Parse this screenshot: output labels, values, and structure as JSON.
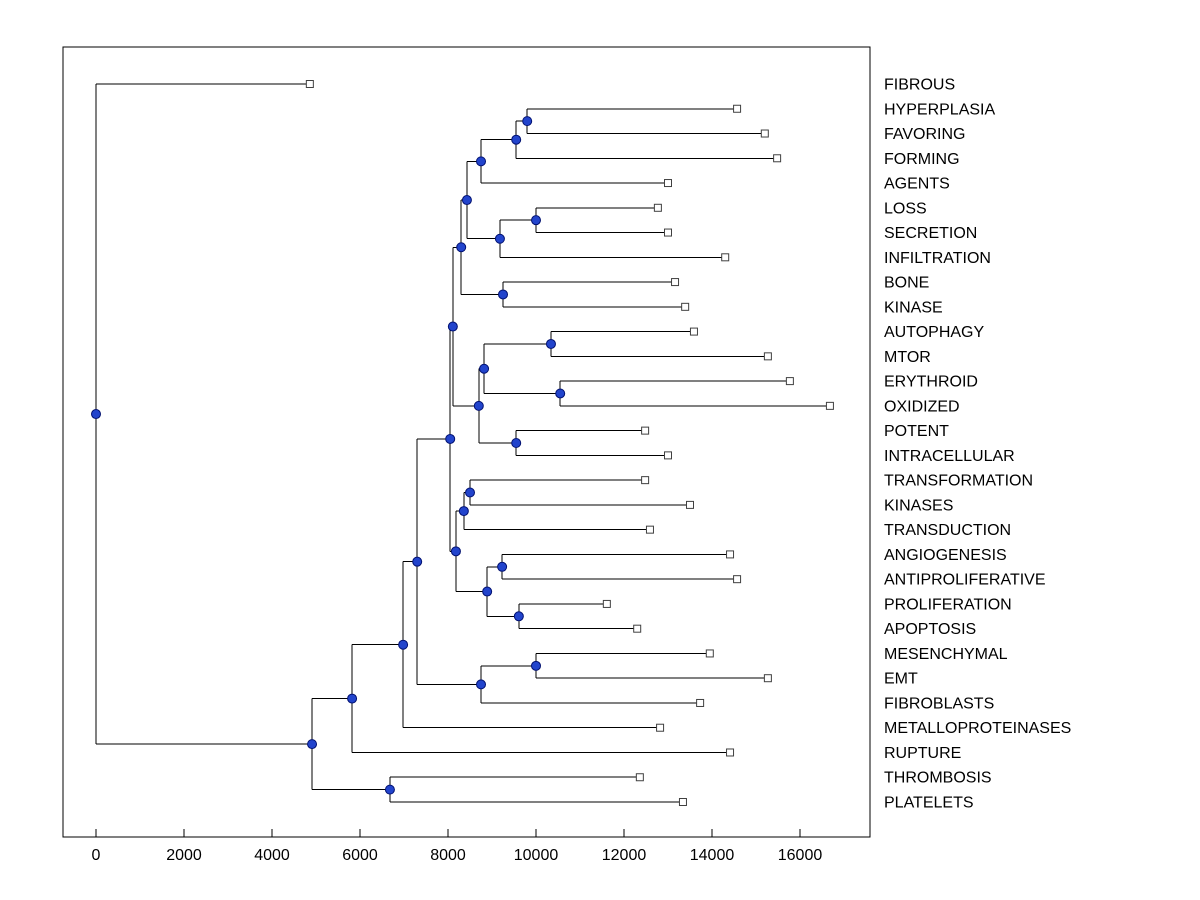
{
  "figure": {
    "background_color": "#ffffff",
    "plot": {
      "box_visible": true,
      "grid": false,
      "legend": null
    },
    "colors": {
      "branch_line": "#000000",
      "axis_line": "#000000",
      "internal_node_fill": "#2244cc",
      "internal_node_stroke": "#001070",
      "leaf_marker_fill": "#ffffff",
      "leaf_marker_stroke": "#404040",
      "text": "#000000"
    }
  },
  "chart_data": {
    "type": "dendrogram",
    "orientation": "horizontal-root-left",
    "title": "",
    "xlabel": "",
    "ylabel": "",
    "xlim": [
      -750,
      17600
    ],
    "x_ticks": [
      0,
      2000,
      4000,
      6000,
      8000,
      10000,
      12000,
      14000,
      16000
    ],
    "x_tick_labels": [
      "0",
      "2000",
      "4000",
      "6000",
      "8000",
      "10000",
      "12000",
      "14000",
      "16000"
    ],
    "n_leaves": 30,
    "marker_legend": {
      "internal_node": "filled blue circle",
      "leaf_tip": "open square"
    },
    "leaves": [
      {
        "label": "FIBROUS",
        "value": 4860
      },
      {
        "label": "HYPERPLASIA",
        "value": 14570
      },
      {
        "label": "FAVORING",
        "value": 15200
      },
      {
        "label": "FORMING",
        "value": 15480
      },
      {
        "label": "AGENTS",
        "value": 13000
      },
      {
        "label": "LOSS",
        "value": 12770
      },
      {
        "label": "SECRETION",
        "value": 13000
      },
      {
        "label": "INFILTRATION",
        "value": 14300
      },
      {
        "label": "BONE",
        "value": 13160
      },
      {
        "label": "KINASE",
        "value": 13390
      },
      {
        "label": "AUTOPHAGY",
        "value": 13590
      },
      {
        "label": "MTOR",
        "value": 15270
      },
      {
        "label": "ERYTHROID",
        "value": 15770
      },
      {
        "label": "OXIDIZED",
        "value": 16680
      },
      {
        "label": "POTENT",
        "value": 12480
      },
      {
        "label": "INTRACELLULAR",
        "value": 13000
      },
      {
        "label": "TRANSFORMATION",
        "value": 12480
      },
      {
        "label": "KINASES",
        "value": 13500
      },
      {
        "label": "TRANSDUCTION",
        "value": 12590
      },
      {
        "label": "ANGIOGENESIS",
        "value": 14410
      },
      {
        "label": "ANTIPROLIFERATIVE",
        "value": 14570
      },
      {
        "label": "PROLIFERATION",
        "value": 11610
      },
      {
        "label": "APOPTOSIS",
        "value": 12300
      },
      {
        "label": "MESENCHYMAL",
        "value": 13950
      },
      {
        "label": "EMT",
        "value": 15270
      },
      {
        "label": "FIBROBLASTS",
        "value": 13730
      },
      {
        "label": "METALLOPROTEINASES",
        "value": 12820
      },
      {
        "label": "RUPTURE",
        "value": 14410
      },
      {
        "label": "THROMBOSIS",
        "value": 12360
      },
      {
        "label": "PLATELETS",
        "value": 13340
      }
    ],
    "tree": {
      "value": 0,
      "children": [
        {
          "leaf": 0
        },
        {
          "value": 4910,
          "children": [
            {
              "value": 5820,
              "children": [
                {
                  "value": 6980,
                  "children": [
                    {
                      "value": 7300,
                      "children": [
                        {
                          "value": 8050,
                          "children": [
                            {
                              "value": 8110,
                              "children": [
                                {
                                  "value": 8300,
                                  "children": [
                                    {
                                      "value": 8430,
                                      "children": [
                                        {
                                          "value": 8750,
                                          "children": [
                                            {
                                              "value": 9550,
                                              "children": [
                                                {
                                                  "value": 9800,
                                                  "children": [
                                                    {
                                                      "leaf": 1
                                                    },
                                                    {
                                                      "leaf": 2
                                                    }
                                                  ]
                                                },
                                                {
                                                  "leaf": 3
                                                }
                                              ]
                                            },
                                            {
                                              "leaf": 4
                                            }
                                          ]
                                        },
                                        {
                                          "value": 9180,
                                          "children": [
                                            {
                                              "value": 10000,
                                              "children": [
                                                {
                                                  "leaf": 5
                                                },
                                                {
                                                  "leaf": 6
                                                }
                                              ]
                                            },
                                            {
                                              "leaf": 7
                                            }
                                          ]
                                        }
                                      ]
                                    },
                                    {
                                      "value": 9250,
                                      "children": [
                                        {
                                          "leaf": 8
                                        },
                                        {
                                          "leaf": 9
                                        }
                                      ]
                                    }
                                  ]
                                },
                                {
                                  "value": 8700,
                                  "children": [
                                    {
                                      "value": 8820,
                                      "children": [
                                        {
                                          "value": 10340,
                                          "children": [
                                            {
                                              "leaf": 10
                                            },
                                            {
                                              "leaf": 11
                                            }
                                          ]
                                        },
                                        {
                                          "value": 10550,
                                          "children": [
                                            {
                                              "leaf": 12
                                            },
                                            {
                                              "leaf": 13
                                            }
                                          ]
                                        }
                                      ]
                                    },
                                    {
                                      "value": 9550,
                                      "children": [
                                        {
                                          "leaf": 14
                                        },
                                        {
                                          "leaf": 15
                                        }
                                      ]
                                    }
                                  ]
                                }
                              ]
                            },
                            {
                              "value": 8180,
                              "children": [
                                {
                                  "value": 8360,
                                  "children": [
                                    {
                                      "value": 8500,
                                      "children": [
                                        {
                                          "leaf": 16
                                        },
                                        {
                                          "leaf": 17
                                        }
                                      ]
                                    },
                                    {
                                      "leaf": 18
                                    }
                                  ]
                                },
                                {
                                  "value": 8890,
                                  "children": [
                                    {
                                      "value": 9230,
                                      "children": [
                                        {
                                          "leaf": 19
                                        },
                                        {
                                          "leaf": 20
                                        }
                                      ]
                                    },
                                    {
                                      "value": 9610,
                                      "children": [
                                        {
                                          "leaf": 21
                                        },
                                        {
                                          "leaf": 22
                                        }
                                      ]
                                    }
                                  ]
                                }
                              ]
                            }
                          ]
                        },
                        {
                          "value": 8750,
                          "children": [
                            {
                              "value": 10000,
                              "children": [
                                {
                                  "leaf": 23
                                },
                                {
                                  "leaf": 24
                                }
                              ]
                            },
                            {
                              "leaf": 25
                            }
                          ]
                        }
                      ]
                    },
                    {
                      "leaf": 26
                    }
                  ]
                },
                {
                  "leaf": 27
                }
              ]
            },
            {
              "value": 6680,
              "children": [
                {
                  "leaf": 28
                },
                {
                  "leaf": 29
                }
              ]
            }
          ]
        }
      ]
    }
  }
}
